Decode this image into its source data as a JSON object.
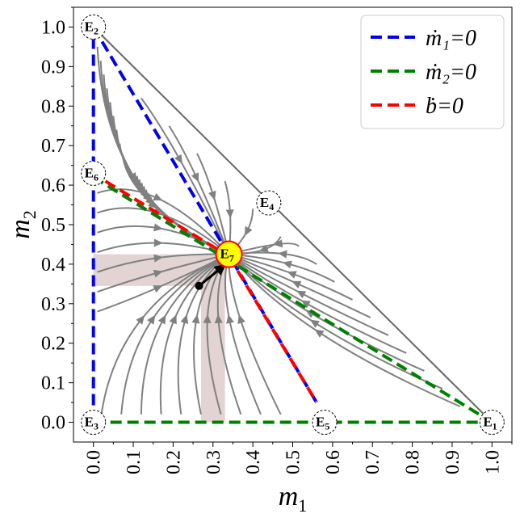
{
  "chart_data": {
    "type": "phase-portrait",
    "xlabel": "m",
    "xlabel_sub": "1",
    "ylabel": "m",
    "ylabel_sub": "2",
    "xlim": [
      -0.05,
      1.05
    ],
    "ylim": [
      -0.05,
      1.05
    ],
    "xticks": [
      "0.0",
      "0.1",
      "0.2",
      "0.3",
      "0.4",
      "0.5",
      "0.6",
      "0.7",
      "0.8",
      "0.9",
      "1.0"
    ],
    "yticks": [
      "0.0",
      "0.1",
      "0.2",
      "0.3",
      "0.4",
      "0.5",
      "0.6",
      "0.7",
      "0.8",
      "0.9",
      "1.0"
    ],
    "simplex_edge": [
      [
        0,
        1
      ],
      [
        1,
        0
      ]
    ],
    "nullclines": [
      {
        "name": "ṁ₁=0",
        "color": "#0000ee",
        "segments": [
          [
            [
              0,
              0
            ],
            [
              0,
              1
            ]
          ],
          [
            [
              0,
              1
            ],
            [
              0.56,
              0.05
            ]
          ]
        ]
      },
      {
        "name": "ṁ₂=0",
        "color": "#008000",
        "segments": [
          [
            [
              0,
              0
            ],
            [
              1,
              0
            ]
          ],
          [
            [
              0,
              0.62
            ],
            [
              1,
              0
            ]
          ]
        ]
      },
      {
        "name": "ḃ=0",
        "color": "#ff0000",
        "segments": [
          [
            [
              0.03,
              0.61
            ],
            [
              0.34,
              0.42
            ]
          ],
          [
            [
              0.34,
              0.42
            ],
            [
              0.56,
              0.05
            ]
          ]
        ]
      }
    ],
    "legend": {
      "position": "top-right",
      "entries": [
        "ṁ₁=0",
        "ṁ₂=0",
        "ḃ=0"
      ]
    },
    "equilibria": [
      {
        "label": "E",
        "sub": "1",
        "x": 1.0,
        "y": 0.0,
        "stable": false
      },
      {
        "label": "E",
        "sub": "2",
        "x": 0.0,
        "y": 1.0,
        "stable": false
      },
      {
        "label": "E",
        "sub": "3",
        "x": 0.0,
        "y": 0.0,
        "stable": false
      },
      {
        "label": "E",
        "sub": "4",
        "x": 0.44,
        "y": 0.555,
        "stable": false
      },
      {
        "label": "E",
        "sub": "5",
        "x": 0.58,
        "y": 0.0,
        "stable": false
      },
      {
        "label": "E",
        "sub": "6",
        "x": 0.0,
        "y": 0.63,
        "stable": false
      },
      {
        "label": "E",
        "sub": "7",
        "x": 0.34,
        "y": 0.425,
        "stable": true
      }
    ],
    "highlight_region": {
      "color": "#b08080",
      "m1_band": [
        0.27,
        0.33
      ],
      "m2_band": [
        0.345,
        0.425
      ]
    },
    "trajectory": {
      "start": [
        0.265,
        0.345
      ],
      "end": [
        0.32,
        0.39
      ]
    },
    "stable_point": [
      0.34,
      0.425
    ],
    "colors": {
      "stream": "#808080",
      "simplex": "#666666",
      "e7_fill": "#ffff00",
      "e7_stroke": "#ff0000"
    }
  }
}
